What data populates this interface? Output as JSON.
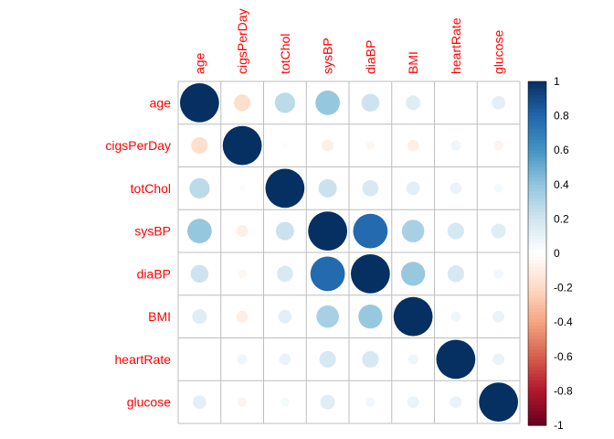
{
  "chart_data": {
    "type": "heatmap",
    "title": "",
    "variables": [
      "age",
      "cigsPerDay",
      "totChol",
      "sysBP",
      "diaBP",
      "BMI",
      "heartRate",
      "glucose"
    ],
    "matrix": [
      [
        1.0,
        -0.18,
        0.27,
        0.39,
        0.21,
        0.14,
        0.0,
        0.12
      ],
      [
        -0.18,
        1.0,
        -0.02,
        -0.09,
        -0.05,
        -0.09,
        0.07,
        -0.06
      ],
      [
        0.27,
        -0.02,
        1.0,
        0.22,
        0.17,
        0.12,
        0.09,
        0.05
      ],
      [
        0.39,
        -0.09,
        0.22,
        1.0,
        0.78,
        0.33,
        0.18,
        0.14
      ],
      [
        0.21,
        -0.05,
        0.17,
        0.78,
        1.0,
        0.38,
        0.18,
        0.06
      ],
      [
        0.14,
        -0.09,
        0.12,
        0.33,
        0.38,
        1.0,
        0.07,
        0.09
      ],
      [
        0.0,
        0.07,
        0.09,
        0.18,
        0.18,
        0.07,
        1.0,
        0.09
      ],
      [
        0.12,
        -0.06,
        0.05,
        0.14,
        0.06,
        0.09,
        0.09,
        1.0
      ]
    ],
    "colorbar": {
      "ticks": [
        1,
        0.8,
        0.6,
        0.4,
        0.2,
        0,
        -0.2,
        -0.4,
        -0.6,
        -0.8,
        -1
      ],
      "tick_labels": [
        "1",
        "0.8",
        "0.6",
        "0.4",
        "0.2",
        "0",
        "-0.2",
        "-0.4",
        "-0.6",
        "-0.8",
        "-1"
      ],
      "range": [
        -1,
        1
      ]
    },
    "colors": {
      "label": "#ff0000",
      "grid": "#bebebe",
      "scale": [
        "#67001f",
        "#b2182b",
        "#d6604d",
        "#f4a582",
        "#fddbc7",
        "#ffffff",
        "#d1e5f0",
        "#92c5de",
        "#4393c3",
        "#2166ac",
        "#053061"
      ]
    },
    "legend": "right",
    "grid": true
  }
}
